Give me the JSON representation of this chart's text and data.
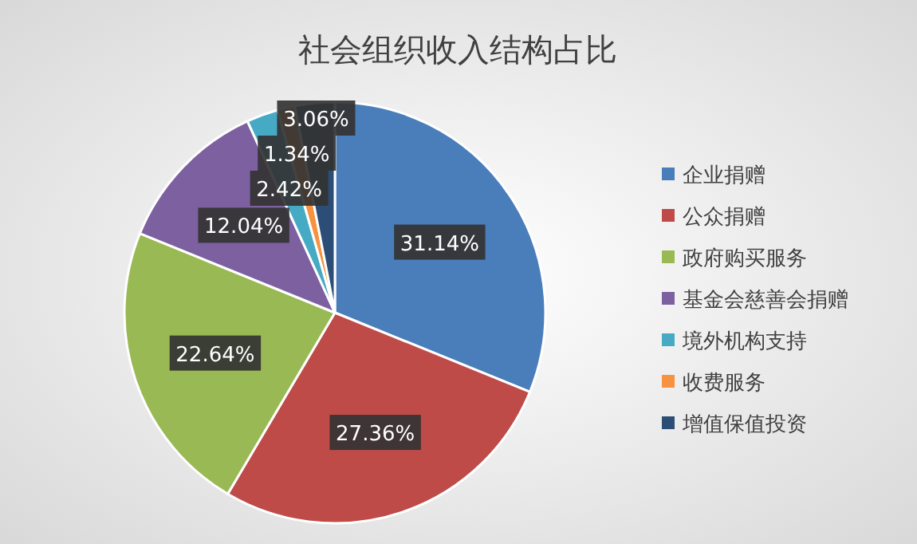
{
  "chart_data": {
    "type": "pie",
    "title": "社会组织收入结构占比",
    "categories": [
      "企业捐赠",
      "公众捐赠",
      "政府购买服务",
      "基金会慈善会捐赠",
      "境外机构支持",
      "收费服务",
      "增值保值投资"
    ],
    "values": [
      31.14,
      27.36,
      22.64,
      12.04,
      2.42,
      1.34,
      3.06
    ],
    "colors": [
      "#4a7ebb",
      "#be4b48",
      "#98b954",
      "#7d60a0",
      "#46aac5",
      "#f69240",
      "#2c4d75"
    ],
    "value_labels": [
      "31.14%",
      "27.36%",
      "22.64%",
      "12.04%",
      "2.42%",
      "1.34%",
      "3.06%"
    ],
    "legend": "right"
  }
}
